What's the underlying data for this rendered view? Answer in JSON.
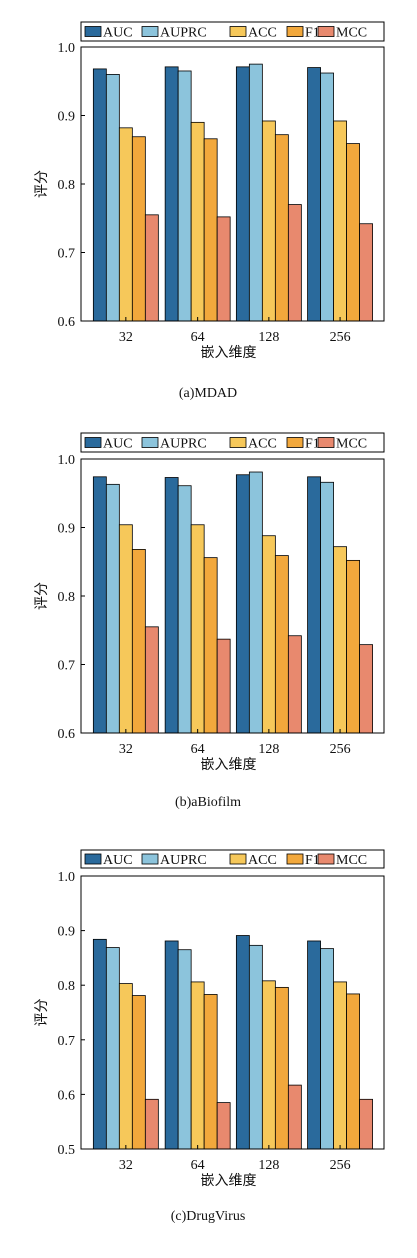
{
  "legend": [
    "AUC",
    "AUPRC",
    "ACC",
    "F1",
    "MCC"
  ],
  "colors": [
    "#2a6a9c",
    "#8cc4dc",
    "#f6c85a",
    "#f2a83c",
    "#e8896e"
  ],
  "chart_data": [
    {
      "type": "bar",
      "title": "",
      "caption": "(a)MDAD",
      "xlabel": "嵌入维度",
      "ylabel": "评分",
      "categories": [
        "32",
        "64",
        "128",
        "256"
      ],
      "ylim": [
        0.6,
        1.0
      ],
      "yticks": [
        "0.6",
        "0.7",
        "0.8",
        "0.9",
        "1.0"
      ],
      "series": [
        {
          "name": "AUC",
          "values": [
            0.968,
            0.971,
            0.971,
            0.97
          ]
        },
        {
          "name": "AUPRC",
          "values": [
            0.96,
            0.965,
            0.975,
            0.962
          ]
        },
        {
          "name": "ACC",
          "values": [
            0.882,
            0.89,
            0.892,
            0.892
          ]
        },
        {
          "name": "F1",
          "values": [
            0.869,
            0.866,
            0.872,
            0.859
          ]
        },
        {
          "name": "MCC",
          "values": [
            0.755,
            0.752,
            0.77,
            0.742
          ]
        }
      ],
      "legend_position": "top"
    },
    {
      "type": "bar",
      "title": "",
      "caption": "(b)aBiofilm",
      "xlabel": "嵌入维度",
      "ylabel": "评分",
      "categories": [
        "32",
        "64",
        "128",
        "256"
      ],
      "ylim": [
        0.6,
        1.0
      ],
      "yticks": [
        "0.6",
        "0.7",
        "0.8",
        "0.9",
        "1.0"
      ],
      "series": [
        {
          "name": "AUC",
          "values": [
            0.974,
            0.973,
            0.977,
            0.974
          ]
        },
        {
          "name": "AUPRC",
          "values": [
            0.963,
            0.961,
            0.981,
            0.966
          ]
        },
        {
          "name": "ACC",
          "values": [
            0.904,
            0.904,
            0.888,
            0.872
          ]
        },
        {
          "name": "F1",
          "values": [
            0.868,
            0.856,
            0.859,
            0.852
          ]
        },
        {
          "name": "MCC",
          "values": [
            0.755,
            0.737,
            0.742,
            0.729
          ]
        }
      ],
      "legend_position": "top"
    },
    {
      "type": "bar",
      "title": "",
      "caption": "(c)DrugVirus",
      "xlabel": "嵌入维度",
      "ylabel": "评分",
      "categories": [
        "32",
        "64",
        "128",
        "256"
      ],
      "ylim": [
        0.5,
        1.0
      ],
      "yticks": [
        "0.5",
        "0.6",
        "0.7",
        "0.8",
        "0.9",
        "1.0"
      ],
      "series": [
        {
          "name": "AUC",
          "values": [
            0.884,
            0.881,
            0.891,
            0.881
          ]
        },
        {
          "name": "AUPRC",
          "values": [
            0.869,
            0.865,
            0.873,
            0.867
          ]
        },
        {
          "name": "ACC",
          "values": [
            0.803,
            0.806,
            0.808,
            0.806
          ]
        },
        {
          "name": "F1",
          "values": [
            0.781,
            0.783,
            0.796,
            0.784
          ]
        },
        {
          "name": "MCC",
          "values": [
            0.591,
            0.585,
            0.617,
            0.591
          ]
        }
      ],
      "legend_position": "top"
    }
  ]
}
